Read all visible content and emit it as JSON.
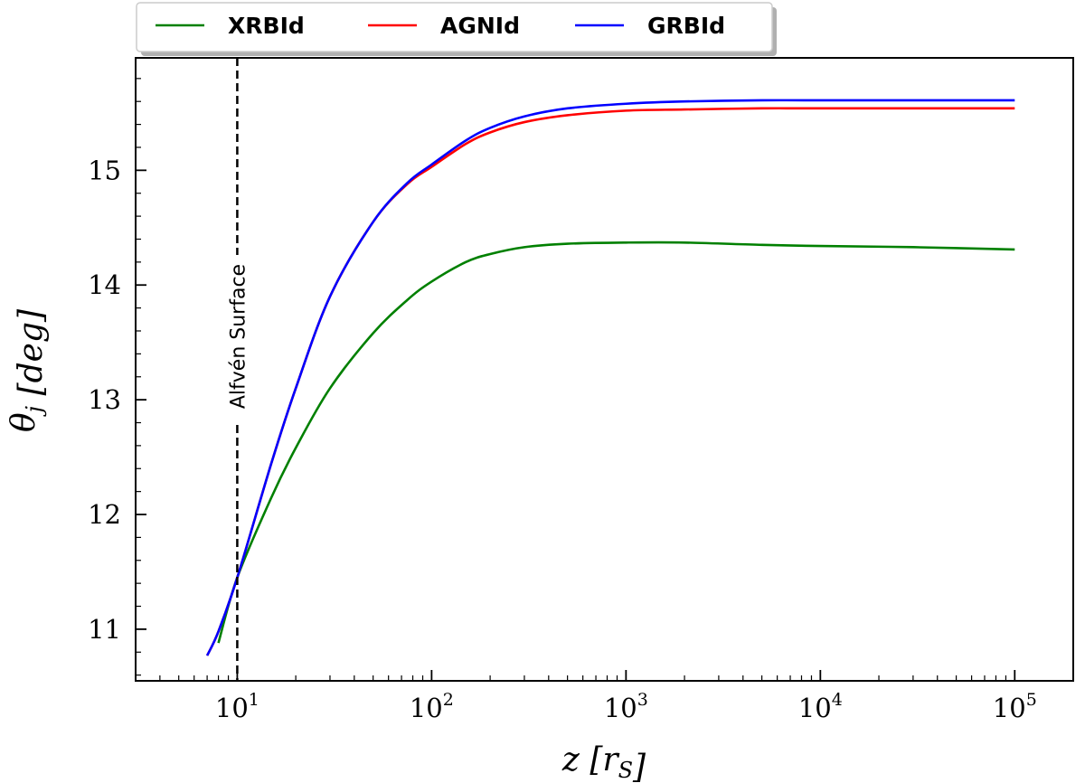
{
  "chart_data": {
    "type": "line",
    "xlabel": "z [r_S]",
    "ylabel": "θ_j [deg]",
    "x_scale": "log",
    "xlim": [
      3,
      200000
    ],
    "ylim": [
      10.55,
      15.98
    ],
    "x_ticks": [
      {
        "value": 10,
        "base": "10",
        "exp": "1"
      },
      {
        "value": 100,
        "base": "10",
        "exp": "2"
      },
      {
        "value": 1000,
        "base": "10",
        "exp": "3"
      },
      {
        "value": 10000,
        "base": "10",
        "exp": "4"
      },
      {
        "value": 100000,
        "base": "10",
        "exp": "5"
      }
    ],
    "y_ticks": [
      "11",
      "12",
      "13",
      "14",
      "15"
    ],
    "grid": false,
    "legend_position": "top-outside",
    "annotations": [
      {
        "type": "vline",
        "x": 10,
        "style": "dashed",
        "color": "#000000",
        "label": "Alfvén Surface"
      }
    ],
    "series": [
      {
        "name": "XRBId",
        "color": "#008000",
        "x": [
          8,
          10,
          15,
          20,
          30,
          50,
          75,
          100,
          150,
          200,
          300,
          500,
          1000,
          2000,
          5000,
          10000,
          30000,
          100000
        ],
        "y": [
          10.88,
          11.45,
          12.15,
          12.58,
          13.1,
          13.58,
          13.87,
          14.03,
          14.2,
          14.27,
          14.33,
          14.36,
          14.37,
          14.37,
          14.35,
          14.34,
          14.33,
          14.31
        ]
      },
      {
        "name": "AGNId",
        "color": "#ff0000",
        "x": [
          7,
          8,
          10,
          15,
          20,
          30,
          50,
          75,
          100,
          150,
          200,
          300,
          500,
          1000,
          2000,
          5000,
          10000,
          100000
        ],
        "y": [
          10.77,
          10.98,
          11.45,
          12.45,
          13.1,
          13.9,
          14.55,
          14.88,
          15.03,
          15.23,
          15.33,
          15.42,
          15.48,
          15.52,
          15.53,
          15.54,
          15.54,
          15.54
        ]
      },
      {
        "name": "GRBId",
        "color": "#0000ff",
        "x": [
          7,
          8,
          10,
          15,
          20,
          30,
          50,
          75,
          100,
          150,
          200,
          300,
          500,
          1000,
          2000,
          5000,
          10000,
          100000
        ],
        "y": [
          10.77,
          10.98,
          11.45,
          12.45,
          13.1,
          13.9,
          14.55,
          14.89,
          15.05,
          15.26,
          15.37,
          15.47,
          15.54,
          15.58,
          15.6,
          15.61,
          15.61,
          15.61
        ]
      }
    ]
  }
}
